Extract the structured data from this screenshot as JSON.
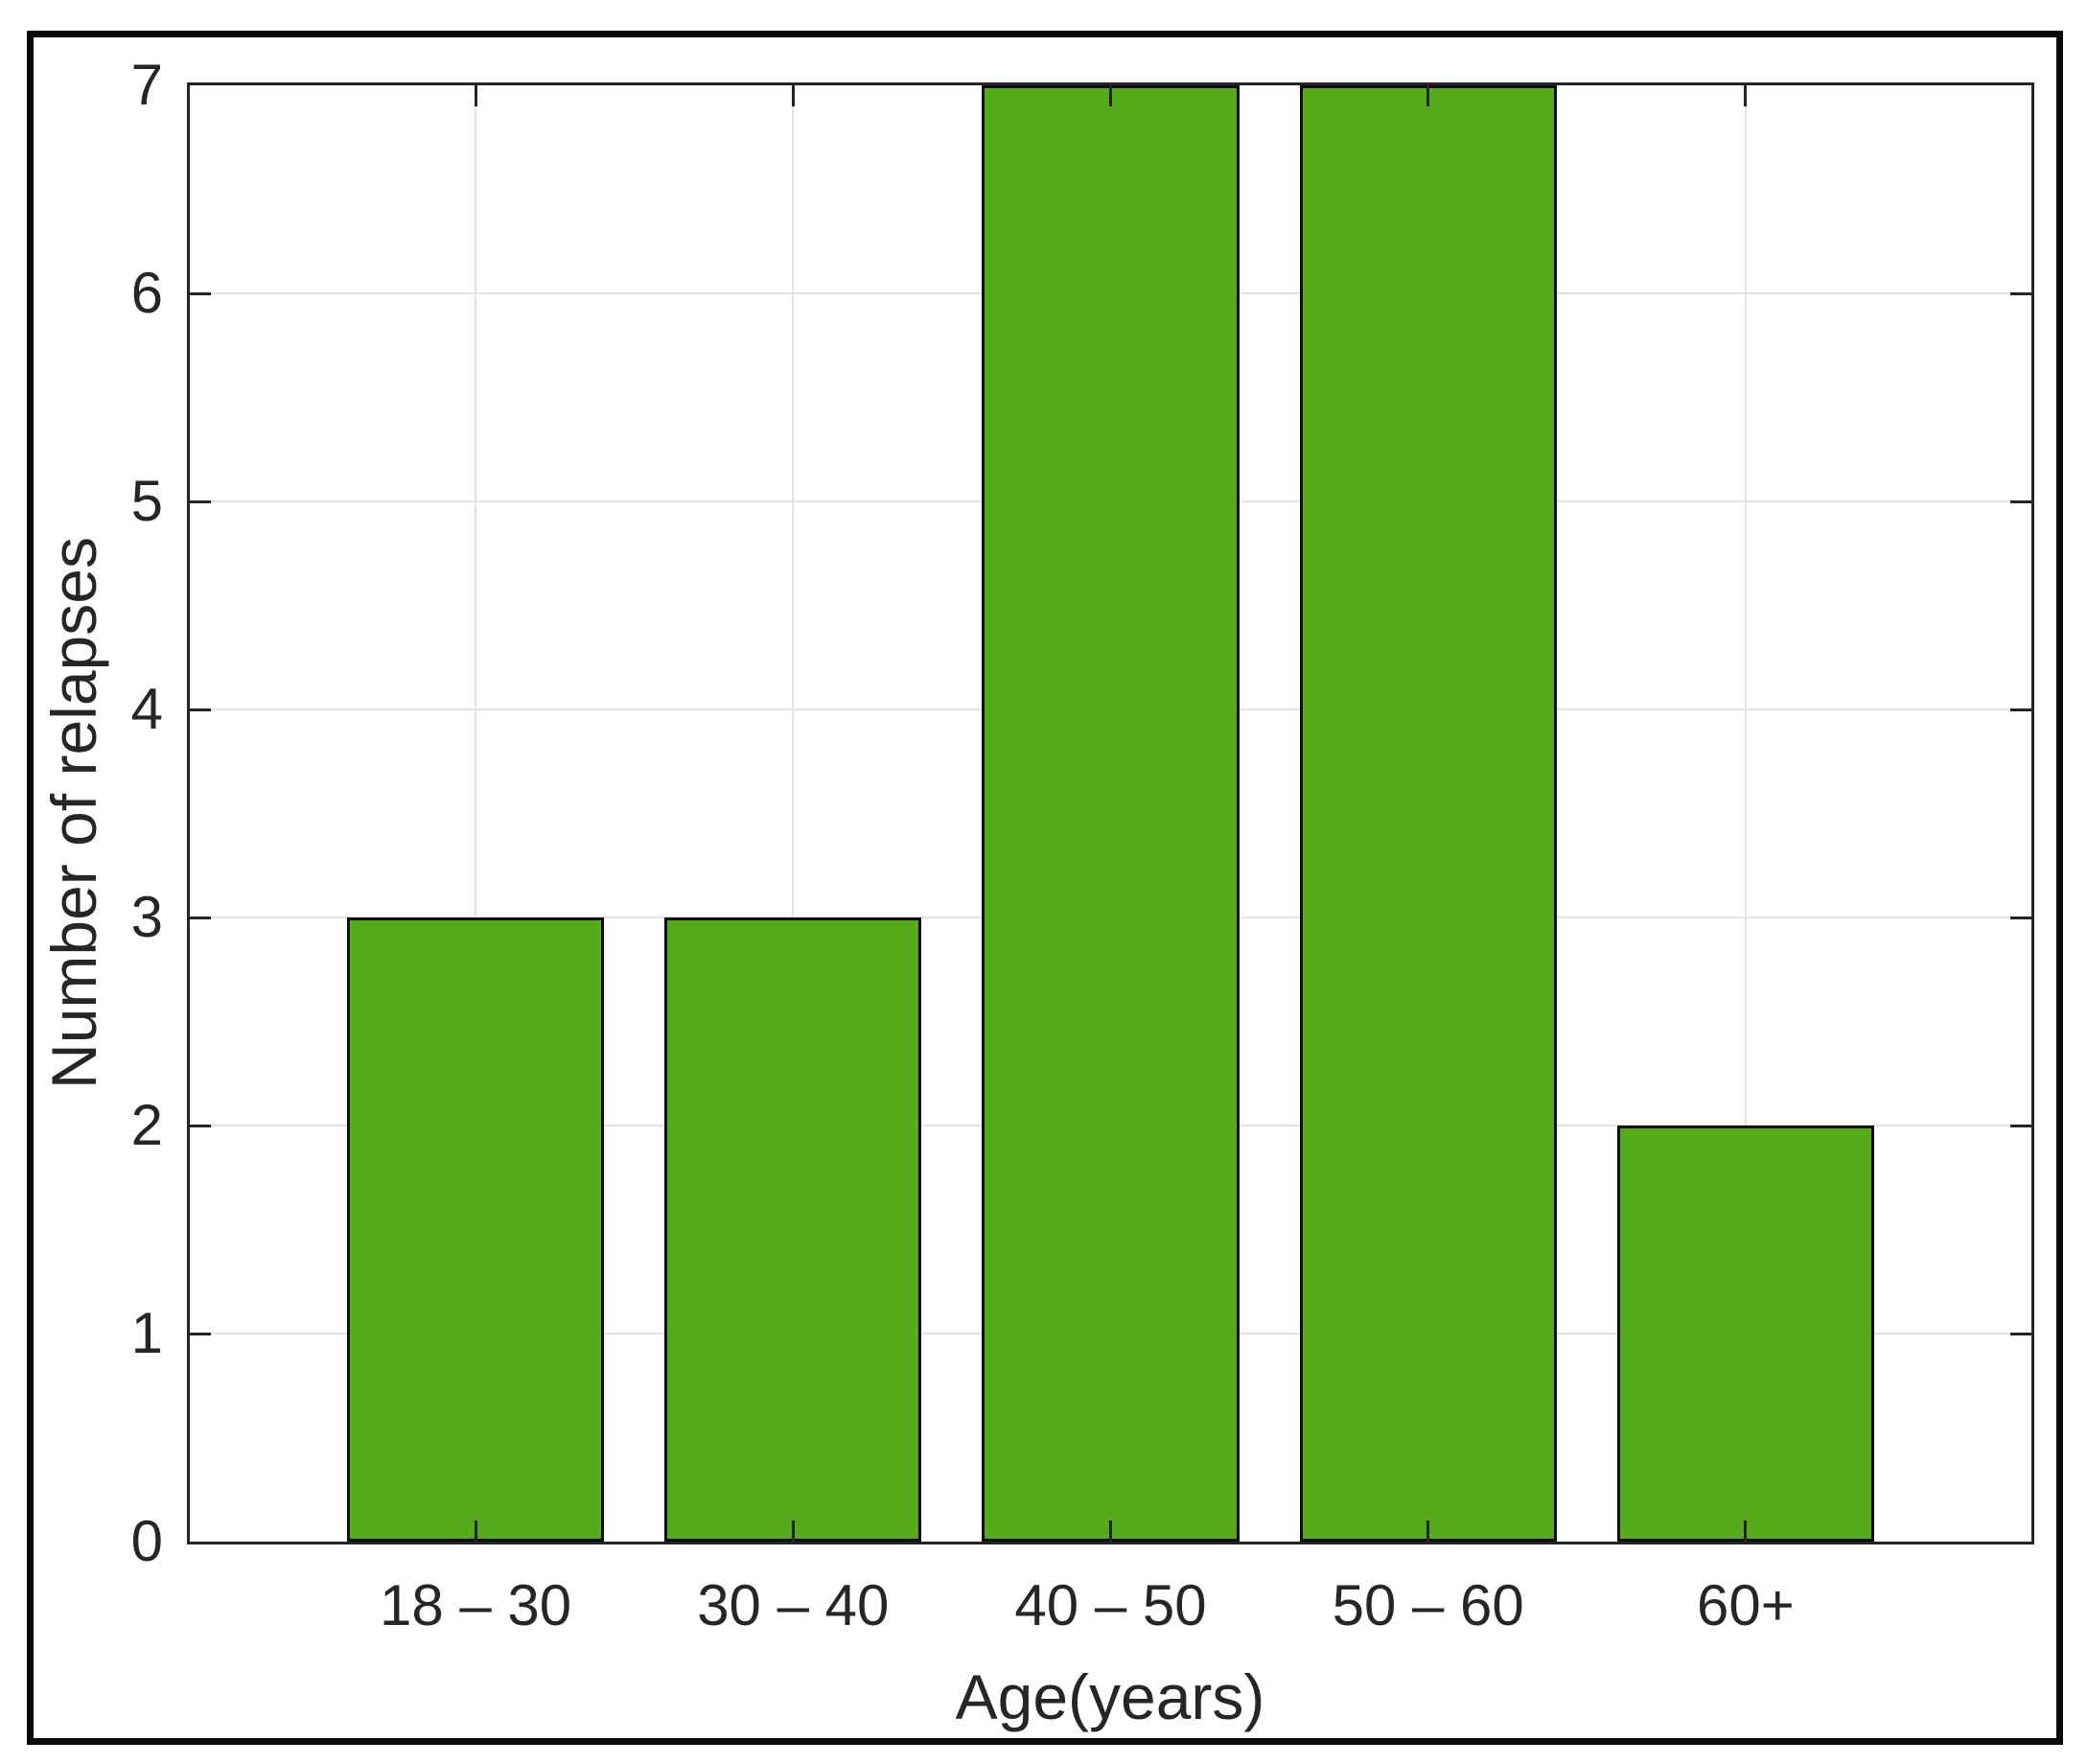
{
  "chart_data": {
    "type": "bar",
    "title": "",
    "xlabel": "Age(years)",
    "ylabel": "Number of relapses",
    "categories": [
      "18 – 30",
      "30 – 40",
      "40 – 50",
      "50 – 60",
      "60+"
    ],
    "values": [
      3,
      3,
      7,
      7,
      2
    ],
    "ylim": [
      0,
      7
    ],
    "yticks": [
      0,
      1,
      2,
      3,
      4,
      5,
      6,
      7
    ],
    "grid": true,
    "legend": "none",
    "bar_color": "#56ab1d",
    "bar_edge_color": "#0d0d0d",
    "gridline_color": "#e2e2e2",
    "axis_color": "#242424",
    "text_color": "#262626",
    "figure_border_color": "#0a0a0a"
  }
}
